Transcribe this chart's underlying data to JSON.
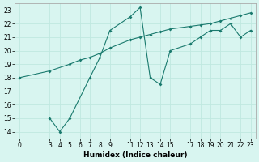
{
  "line1_x": [
    3,
    4,
    5,
    7,
    8,
    9,
    11,
    12,
    13,
    14,
    15,
    17,
    18,
    19,
    20,
    21,
    22,
    23
  ],
  "line1_y": [
    15,
    14,
    15,
    18,
    19.5,
    21.5,
    22.5,
    23.2,
    18,
    17.5,
    20,
    20.5,
    21,
    21.5,
    21.5,
    22,
    21,
    21.5
  ],
  "line2_x": [
    0,
    3,
    5,
    6,
    7,
    8,
    9,
    11,
    12,
    13,
    14,
    15,
    17,
    18,
    19,
    20,
    21,
    22,
    23
  ],
  "line2_y": [
    18,
    18.5,
    19,
    19.3,
    19.5,
    19.8,
    20.2,
    20.8,
    21.0,
    21.2,
    21.4,
    21.6,
    21.8,
    21.9,
    22.0,
    22.2,
    22.4,
    22.6,
    22.8
  ],
  "color": "#1a7a6e",
  "bg_color": "#d8f5f0",
  "grid_color": "#c0e8e0",
  "xlabel": "Humidex (Indice chaleur)",
  "xlim": [
    -0.5,
    23.5
  ],
  "ylim": [
    13.5,
    23.5
  ],
  "xticks": [
    0,
    3,
    4,
    5,
    6,
    7,
    8,
    9,
    11,
    12,
    13,
    14,
    15,
    17,
    18,
    19,
    20,
    21,
    22,
    23
  ],
  "yticks": [
    14,
    15,
    16,
    17,
    18,
    19,
    20,
    21,
    22,
    23
  ]
}
